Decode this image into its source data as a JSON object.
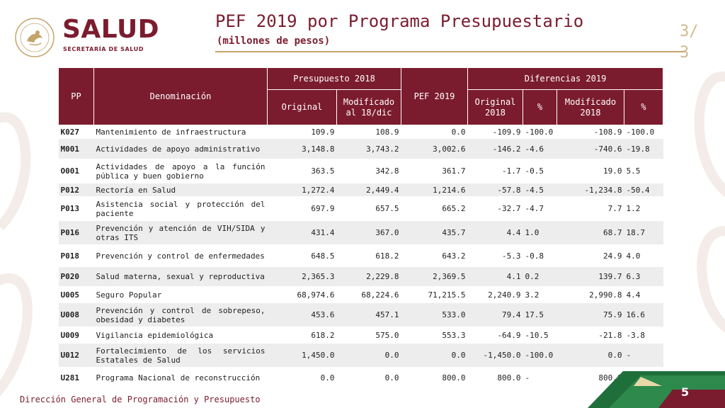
{
  "logo": {
    "main": "SALUD",
    "sub": "SECRETARÍA DE SALUD",
    "seal_text": "ESTADOS UNIDOS MEXICANOS"
  },
  "title": "PEF 2019 por Programa Presupuestario",
  "subtitle": "(millones de pesos)",
  "page_fraction": "3/\n3",
  "table": {
    "headers": {
      "pp": "PP",
      "denominacion": "Denominación",
      "presupuesto_2018": "Presupuesto 2018",
      "pef_2019": "PEF 2019",
      "diferencias_2019": "Diferencias 2019",
      "original": "Original",
      "modificado_dic": "Modificado al 18/dic",
      "original_2018": "Original 2018",
      "pct_1": "%",
      "modificado_2018": "Modificado 2018",
      "pct_2": "%"
    },
    "rows": [
      {
        "pp": "K027",
        "denominacion": "Mantenimiento de infraestructura",
        "original": "109.9",
        "modificado": "108.9",
        "pef": "0.0",
        "dif_original": "-109.9",
        "pct_original": "-100.0",
        "dif_modificado": "-108.9",
        "pct_modificado": "-100.0"
      },
      {
        "pp": "M001",
        "denominacion": "Actividades de apoyo administrativo",
        "original": "3,148.8",
        "modificado": "3,743.2",
        "pef": "3,002.6",
        "dif_original": "-146.2",
        "pct_original": "-4.6",
        "dif_modificado": "-740.6",
        "pct_modificado": "-19.8"
      },
      {
        "pp": "O001",
        "denominacion": "Actividades de apoyo a la función pública y buen gobierno",
        "original": "363.5",
        "modificado": "342.8",
        "pef": "361.7",
        "dif_original": "-1.7",
        "pct_original": "-0.5",
        "dif_modificado": "19.0",
        "pct_modificado": "5.5"
      },
      {
        "pp": "P012",
        "denominacion": "Rectoría en Salud",
        "original": "1,272.4",
        "modificado": "2,449.4",
        "pef": "1,214.6",
        "dif_original": "-57.8",
        "pct_original": "-4.5",
        "dif_modificado": "-1,234.8",
        "pct_modificado": "-50.4"
      },
      {
        "pp": "P013",
        "denominacion": "Asistencia social y protección del paciente",
        "original": "697.9",
        "modificado": "657.5",
        "pef": "665.2",
        "dif_original": "-32.7",
        "pct_original": "-4.7",
        "dif_modificado": "7.7",
        "pct_modificado": "1.2"
      },
      {
        "pp": "P016",
        "denominacion": "Prevención y atención de VIH/SIDA y otras ITS",
        "original": "431.4",
        "modificado": "367.0",
        "pef": "435.7",
        "dif_original": "4.4",
        "pct_original": "1.0",
        "dif_modificado": "68.7",
        "pct_modificado": "18.7"
      },
      {
        "pp": "P018",
        "denominacion": "Prevención y control de enfermedades",
        "original": "648.5",
        "modificado": "618.2",
        "pef": "643.2",
        "dif_original": "-5.3",
        "pct_original": "-0.8",
        "dif_modificado": "24.9",
        "pct_modificado": "4.0"
      },
      {
        "pp": "P020",
        "denominacion": "Salud materna, sexual y reproductiva",
        "original": "2,365.3",
        "modificado": "2,229.8",
        "pef": "2,369.5",
        "dif_original": "4.1",
        "pct_original": "0.2",
        "dif_modificado": "139.7",
        "pct_modificado": "6.3"
      },
      {
        "pp": "U005",
        "denominacion": "Seguro Popular",
        "original": "68,974.6",
        "modificado": "68,224.6",
        "pef": "71,215.5",
        "dif_original": "2,240.9",
        "pct_original": "3.2",
        "dif_modificado": "2,990.8",
        "pct_modificado": "4.4"
      },
      {
        "pp": "U008",
        "denominacion": "Prevención y control de sobrepeso, obesidad y diabetes",
        "original": "453.6",
        "modificado": "457.1",
        "pef": "533.0",
        "dif_original": "79.4",
        "pct_original": "17.5",
        "dif_modificado": "75.9",
        "pct_modificado": "16.6"
      },
      {
        "pp": "U009",
        "denominacion": "Vigilancia epidemiológica",
        "original": "618.2",
        "modificado": "575.0",
        "pef": "553.3",
        "dif_original": "-64.9",
        "pct_original": "-10.5",
        "dif_modificado": "-21.8",
        "pct_modificado": "-3.8"
      },
      {
        "pp": "U012",
        "denominacion": "Fortalecimiento de los servicios Estatales de Salud",
        "original": "1,450.0",
        "modificado": "0.0",
        "pef": "0.0",
        "dif_original": "-1,450.0",
        "pct_original": "-100.0",
        "dif_modificado": "0.0",
        "pct_modificado": "-"
      },
      {
        "pp": "U281",
        "denominacion": "Programa Nacional de reconstrucción",
        "original": "0.0",
        "modificado": "0.0",
        "pef": "800.0",
        "dif_original": "800.0",
        "pct_original": "-",
        "dif_modificado": "800.0",
        "pct_modificado": "-"
      }
    ]
  },
  "footer": "Dirección General de Programación y Presupuesto",
  "page_number": "5",
  "colors": {
    "primary": "#7b1c2e",
    "accent": "#c5a46a",
    "green": "#1f6f3a"
  }
}
